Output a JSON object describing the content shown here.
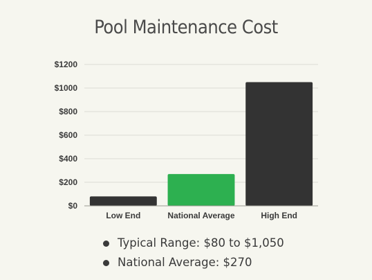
{
  "colors": {
    "dark_bar": "#333333",
    "accent_bar": "#2db050",
    "background": "#f6f6ef"
  },
  "chart_data": {
    "type": "bar",
    "title": "Pool Maintenance Cost",
    "categories": [
      "Low End",
      "National Average",
      "High End"
    ],
    "values": [
      80,
      270,
      1050
    ],
    "bar_colors": [
      "#333333",
      "#2db050",
      "#333333"
    ],
    "ylim": [
      0,
      1200
    ],
    "yticks": [
      "$0",
      "$200",
      "$400",
      "$600",
      "$800",
      "$1000",
      "$1200"
    ],
    "grid": true,
    "xlabel": "",
    "ylabel": ""
  },
  "bullets": [
    "Typical Range: $80 to $1,050",
    "National Average: $270"
  ]
}
